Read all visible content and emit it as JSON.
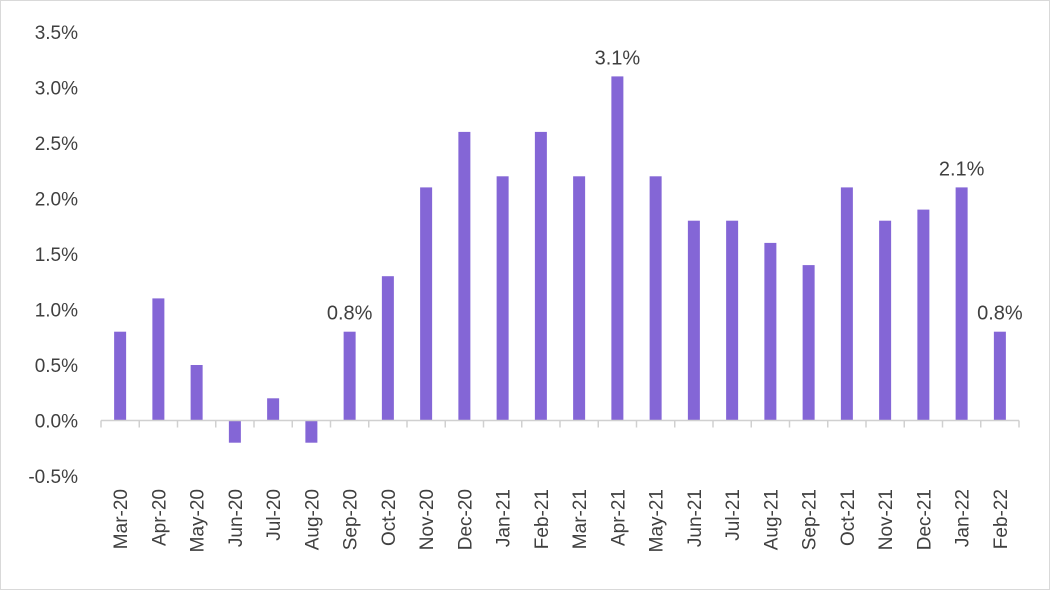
{
  "chart_data": {
    "type": "bar",
    "title": "",
    "xlabel": "",
    "ylabel": "",
    "categories": [
      "Mar-20",
      "Apr-20",
      "May-20",
      "Jun-20",
      "Jul-20",
      "Aug-20",
      "Sep-20",
      "Oct-20",
      "Nov-20",
      "Dec-20",
      "Jan-21",
      "Feb-21",
      "Mar-21",
      "Apr-21",
      "May-21",
      "Jun-21",
      "Jul-21",
      "Aug-21",
      "Sep-21",
      "Oct-21",
      "Nov-21",
      "Dec-21",
      "Jan-22",
      "Feb-22"
    ],
    "values": [
      0.8,
      1.1,
      0.5,
      -0.2,
      0.2,
      -0.2,
      0.8,
      1.3,
      2.1,
      2.6,
      2.2,
      2.6,
      2.2,
      3.1,
      2.2,
      1.8,
      1.8,
      1.6,
      1.4,
      2.1,
      1.8,
      1.9,
      2.1,
      0.8
    ],
    "unit": "%",
    "ylim": [
      -0.5,
      3.5
    ],
    "yticks": [
      -0.5,
      0.0,
      0.5,
      1.0,
      1.5,
      2.0,
      2.5,
      3.0,
      3.5
    ],
    "ytick_labels": [
      "-0.5%",
      "0.0%",
      "0.5%",
      "1.0%",
      "1.5%",
      "2.0%",
      "2.5%",
      "3.0%",
      "3.5%"
    ],
    "data_labels": [
      {
        "category": "Sep-20",
        "text": "0.8%"
      },
      {
        "category": "Apr-21",
        "text": "3.1%"
      },
      {
        "category": "Jan-22",
        "text": "2.1%"
      },
      {
        "category": "Feb-22",
        "text": "0.8%"
      }
    ],
    "bar_color": "#8466d6",
    "grid": false,
    "legend": "none"
  }
}
